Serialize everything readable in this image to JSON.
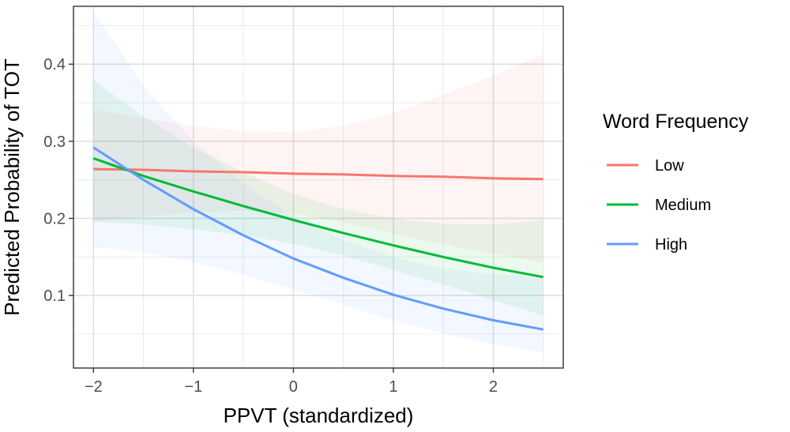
{
  "chart_data": {
    "type": "line",
    "title": "",
    "xlabel": "PPVT (standardized)",
    "ylabel": "Predicted Probability of TOT",
    "xlim": [
      -2.2,
      2.7
    ],
    "ylim": [
      0.006,
      0.475
    ],
    "x_ticks": [
      -2,
      -1,
      0,
      1,
      2
    ],
    "x_tick_labels": [
      "−2",
      "−1",
      "0",
      "1",
      "2"
    ],
    "y_ticks": [
      0.1,
      0.2,
      0.3,
      0.4
    ],
    "y_tick_labels": [
      "0.1",
      "0.2",
      "0.3",
      "0.4"
    ],
    "grid": true,
    "legend_title": "Word Frequency",
    "legend_position": "right",
    "x": [
      -2,
      -1.5,
      -1,
      -0.5,
      0,
      0.5,
      1,
      1.5,
      2,
      2.5
    ],
    "series": [
      {
        "name": "Low",
        "color": "#F8766D",
        "values": [
          0.264,
          0.263,
          0.261,
          0.26,
          0.258,
          0.257,
          0.255,
          0.254,
          0.252,
          0.251
        ],
        "lower": [
          0.196,
          0.202,
          0.208,
          0.21,
          0.206,
          0.195,
          0.18,
          0.166,
          0.154,
          0.143
        ],
        "upper": [
          0.341,
          0.33,
          0.32,
          0.313,
          0.312,
          0.32,
          0.336,
          0.36,
          0.385,
          0.413
        ]
      },
      {
        "name": "Medium",
        "color": "#00BA38",
        "values": [
          0.278,
          0.255,
          0.235,
          0.216,
          0.198,
          0.181,
          0.165,
          0.15,
          0.136,
          0.124
        ],
        "lower": [
          0.196,
          0.192,
          0.186,
          0.178,
          0.167,
          0.152,
          0.133,
          0.114,
          0.094,
          0.074
        ],
        "upper": [
          0.379,
          0.332,
          0.292,
          0.26,
          0.232,
          0.212,
          0.2,
          0.193,
          0.192,
          0.198
        ]
      },
      {
        "name": "High",
        "color": "#619CFF",
        "values": [
          0.292,
          0.25,
          0.212,
          0.178,
          0.148,
          0.123,
          0.101,
          0.083,
          0.068,
          0.056
        ],
        "lower": [
          0.163,
          0.156,
          0.143,
          0.127,
          0.108,
          0.088,
          0.068,
          0.051,
          0.037,
          0.026
        ],
        "upper": [
          0.468,
          0.372,
          0.3,
          0.245,
          0.202,
          0.172,
          0.15,
          0.135,
          0.128,
          0.124
        ]
      }
    ]
  }
}
